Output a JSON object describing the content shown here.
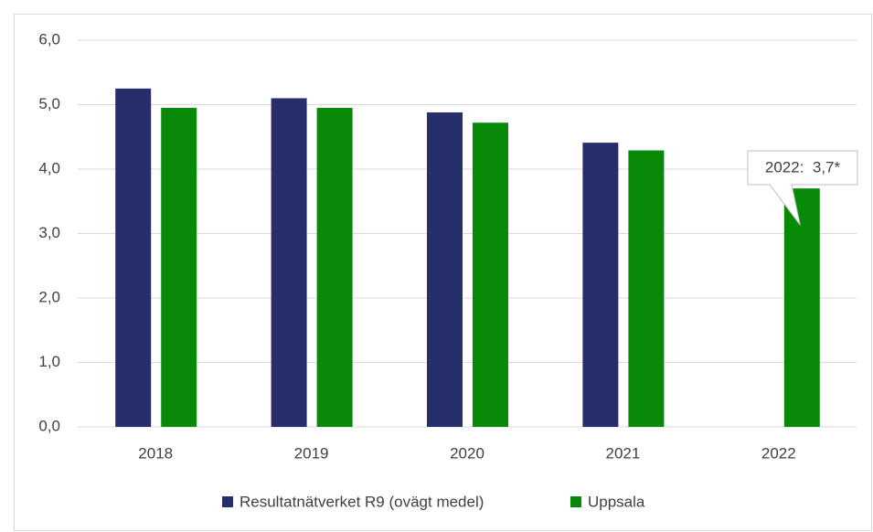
{
  "chart_data": {
    "type": "bar",
    "categories": [
      "2018",
      "2019",
      "2020",
      "2021",
      "2022"
    ],
    "series": [
      {
        "name": "Resultatnätverket R9 (ovägt medel)",
        "color": "#262e6c",
        "values": [
          5.25,
          5.1,
          4.88,
          4.41,
          null
        ]
      },
      {
        "name": "Uppsala",
        "color": "#088a08",
        "values": [
          4.95,
          4.95,
          4.72,
          4.29,
          3.7
        ]
      }
    ],
    "annotation": "2022:  3,7*",
    "ylim": [
      0,
      6
    ],
    "yticks": [
      {
        "value": 0,
        "label": "0,0"
      },
      {
        "value": 1,
        "label": "1,0"
      },
      {
        "value": 2,
        "label": "2,0"
      },
      {
        "value": 3,
        "label": "3,0"
      },
      {
        "value": 4,
        "label": "4,0"
      },
      {
        "value": 5,
        "label": "5,0"
      },
      {
        "value": 6,
        "label": "6,0"
      }
    ],
    "grid": true,
    "legend": "bottom"
  }
}
